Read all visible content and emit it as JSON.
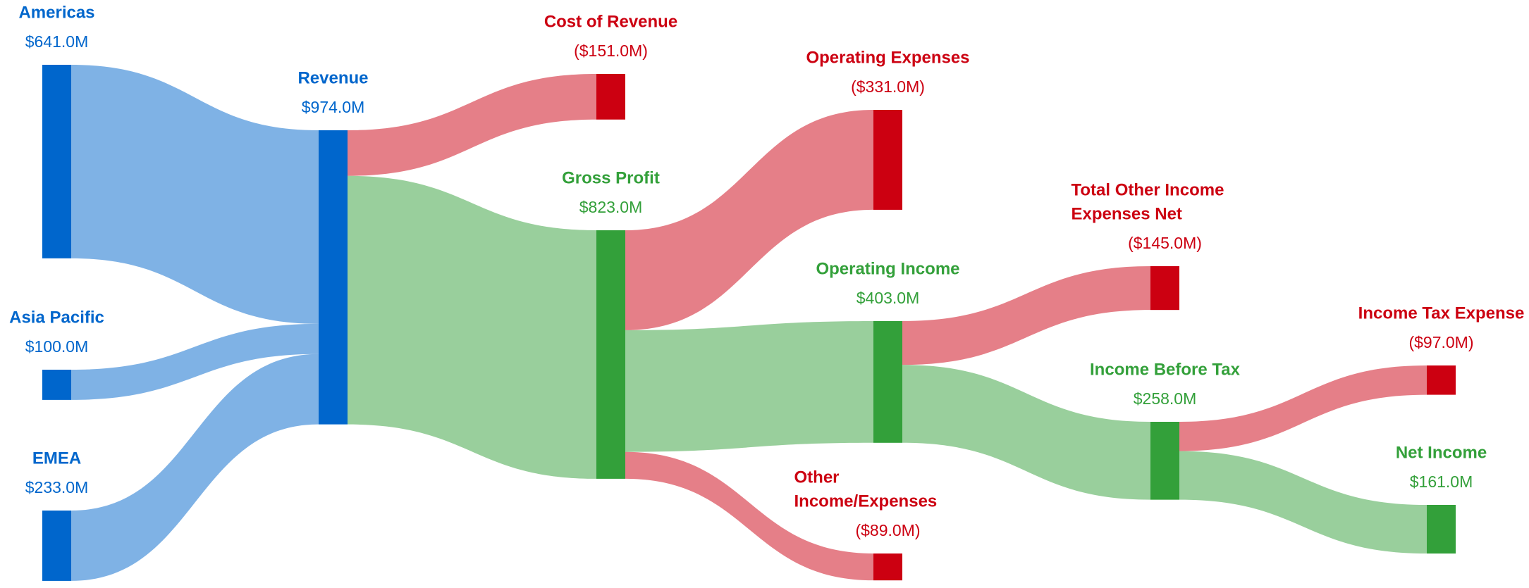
{
  "chart_data": {
    "type": "sankey",
    "nodes": [
      {
        "name": "Americas",
        "value": 641,
        "value_label": "$641.0M",
        "color": "#0066cc"
      },
      {
        "name": "Asia Pacific",
        "value": 100,
        "value_label": "$100.0M",
        "color": "#0066cc"
      },
      {
        "name": "EMEA",
        "value": 233,
        "value_label": "$233.0M",
        "color": "#0066cc"
      },
      {
        "name": "Revenue",
        "value": 974,
        "value_label": "$974.0M",
        "color": "#0066cc"
      },
      {
        "name": "Cost of Revenue",
        "value": -151,
        "value_label": "($151.0M)",
        "color": "#cc0011"
      },
      {
        "name": "Gross Profit",
        "value": 823,
        "value_label": "$823.0M",
        "color": "#33a03a"
      },
      {
        "name": "Operating Expenses",
        "value": -331,
        "value_label": "($331.0M)",
        "color": "#cc0011"
      },
      {
        "name": "Operating Income",
        "value": 403,
        "value_label": "$403.0M",
        "color": "#33a03a"
      },
      {
        "name": [
          "Other",
          "Income/Expenses"
        ],
        "value": -89,
        "value_label": "($89.0M)",
        "color": "#cc0011"
      },
      {
        "name": [
          "Total Other Income",
          "Expenses Net"
        ],
        "value": -145,
        "value_label": "($145.0M)",
        "color": "#cc0011"
      },
      {
        "name": "Income Before Tax",
        "value": 258,
        "value_label": "$258.0M",
        "color": "#33a03a"
      },
      {
        "name": "Income Tax Expense",
        "value": -97,
        "value_label": "($97.0M)",
        "color": "#cc0011"
      },
      {
        "name": "Net Income",
        "value": 161,
        "value_label": "$161.0M",
        "color": "#33a03a"
      }
    ],
    "links": [
      {
        "source": 0,
        "target": 3
      },
      {
        "source": 1,
        "target": 3
      },
      {
        "source": 2,
        "target": 3
      },
      {
        "source": 3,
        "target": 4
      },
      {
        "source": 3,
        "target": 5
      },
      {
        "source": 5,
        "target": 6
      },
      {
        "source": 5,
        "target": 7
      },
      {
        "source": 5,
        "target": 8
      },
      {
        "source": 7,
        "target": 9
      },
      {
        "source": 7,
        "target": 10
      },
      {
        "source": 10,
        "target": 11
      },
      {
        "source": 10,
        "target": 12
      }
    ]
  }
}
